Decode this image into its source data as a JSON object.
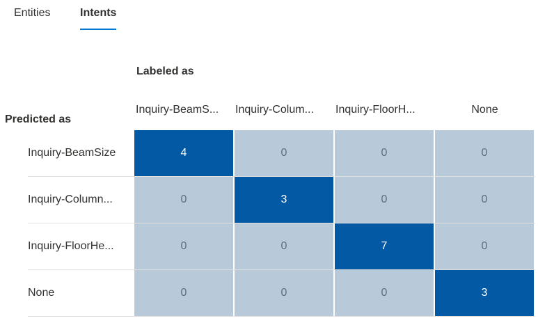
{
  "tabs": [
    {
      "label": "Entities",
      "selected": false
    },
    {
      "label": "Intents",
      "selected": true
    }
  ],
  "matrix": {
    "column_axis_label": "Labeled as",
    "row_axis_label": "Predicted as",
    "columns": [
      "Inquiry-BeamS...",
      "Inquiry-Colum...",
      "Inquiry-FloorH...",
      "None"
    ],
    "rows": [
      {
        "label": "Inquiry-BeamSize",
        "values": [
          "4",
          "0",
          "0",
          "0"
        ]
      },
      {
        "label": "Inquiry-Column...",
        "values": [
          "0",
          "3",
          "0",
          "0"
        ]
      },
      {
        "label": "Inquiry-FloorHe...",
        "values": [
          "0",
          "0",
          "7",
          "0"
        ]
      },
      {
        "label": "None",
        "values": [
          "0",
          "0",
          "0",
          "3"
        ]
      }
    ]
  },
  "colors": {
    "accent": "#0078d4",
    "cell_highlight": "#0359a3",
    "cell_default": "#b8c9d9"
  }
}
